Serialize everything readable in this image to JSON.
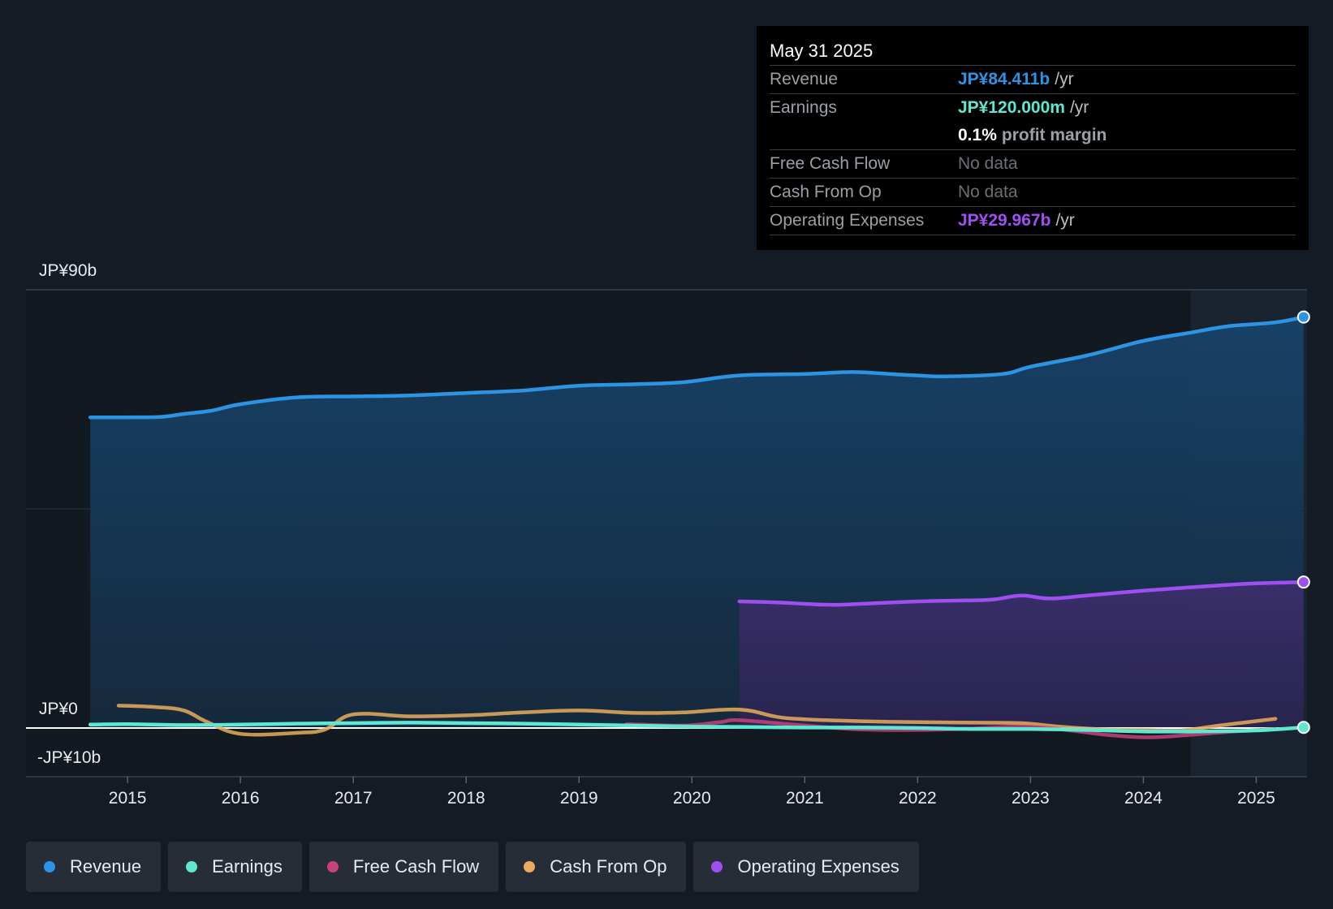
{
  "tooltip": {
    "date": "May 31 2025",
    "revenue": {
      "label": "Revenue",
      "value": "JP¥84.411b",
      "unit": "/yr"
    },
    "earnings": {
      "label": "Earnings",
      "value": "JP¥120.000m",
      "unit": "/yr"
    },
    "profit_margin": {
      "value": "0.1%",
      "label": "profit margin"
    },
    "free_cash_flow": {
      "label": "Free Cash Flow",
      "value": "No data"
    },
    "cash_from_op": {
      "label": "Cash From Op",
      "value": "No data"
    },
    "operating_expenses": {
      "label": "Operating Expenses",
      "value": "JP¥29.967b",
      "unit": "/yr"
    }
  },
  "legend": [
    {
      "label": "Revenue",
      "color": "#2d94e3"
    },
    {
      "label": "Earnings",
      "color": "#5ee8d2"
    },
    {
      "label": "Free Cash Flow",
      "color": "#c8427a"
    },
    {
      "label": "Cash From Op",
      "color": "#e8ad5c"
    },
    {
      "label": "Operating Expenses",
      "color": "#9f4ff0"
    }
  ],
  "chart_data": {
    "type": "area",
    "title": "",
    "y_axis_labels": [
      "JP¥90b",
      "JP¥0",
      "-JP¥10b"
    ],
    "ylim": [
      -10,
      90
    ],
    "xlim": [
      2014.1,
      2025.45
    ],
    "x_ticks": [
      2015,
      2016,
      2017,
      2018,
      2019,
      2020,
      2021,
      2022,
      2023,
      2024,
      2025
    ],
    "x_tick_labels": [
      "2015",
      "2016",
      "2017",
      "2018",
      "2019",
      "2020",
      "2021",
      "2022",
      "2023",
      "2024",
      "2025"
    ],
    "forecast_region_start": 2024.42,
    "series": [
      {
        "name": "Revenue",
        "color": "#2d94e3",
        "filled": true,
        "points": [
          [
            2014.67,
            63.8
          ],
          [
            2015.0,
            63.8
          ],
          [
            2015.3,
            63.9
          ],
          [
            2015.5,
            64.5
          ],
          [
            2015.75,
            65.2
          ],
          [
            2016.0,
            66.5
          ],
          [
            2016.5,
            67.9
          ],
          [
            2017.0,
            68.1
          ],
          [
            2017.5,
            68.3
          ],
          [
            2018.0,
            68.8
          ],
          [
            2018.5,
            69.3
          ],
          [
            2019.0,
            70.3
          ],
          [
            2019.5,
            70.6
          ],
          [
            2019.92,
            71.0
          ],
          [
            2020.25,
            72.0
          ],
          [
            2020.5,
            72.5
          ],
          [
            2021.0,
            72.7
          ],
          [
            2021.42,
            73.1
          ],
          [
            2021.75,
            72.7
          ],
          [
            2022.0,
            72.4
          ],
          [
            2022.25,
            72.2
          ],
          [
            2022.75,
            72.7
          ],
          [
            2023.0,
            74.2
          ],
          [
            2023.5,
            76.5
          ],
          [
            2024.0,
            79.5
          ],
          [
            2024.42,
            81.2
          ],
          [
            2024.75,
            82.5
          ],
          [
            2025.17,
            83.3
          ],
          [
            2025.42,
            84.4
          ]
        ]
      },
      {
        "name": "Operating Expenses",
        "color": "#9f4ff0",
        "filled": true,
        "points": [
          [
            2020.42,
            26.0
          ],
          [
            2020.75,
            25.8
          ],
          [
            2021.0,
            25.5
          ],
          [
            2021.25,
            25.3
          ],
          [
            2021.5,
            25.5
          ],
          [
            2022.0,
            26.0
          ],
          [
            2022.42,
            26.2
          ],
          [
            2022.67,
            26.4
          ],
          [
            2022.92,
            27.2
          ],
          [
            2023.17,
            26.6
          ],
          [
            2023.5,
            27.2
          ],
          [
            2024.0,
            28.2
          ],
          [
            2024.42,
            28.9
          ],
          [
            2024.75,
            29.4
          ],
          [
            2025.0,
            29.7
          ],
          [
            2025.42,
            29.97
          ]
        ]
      },
      {
        "name": "Cash From Op",
        "color": "#e8ad5c",
        "filled": false,
        "points": [
          [
            2014.92,
            4.6
          ],
          [
            2015.25,
            4.3
          ],
          [
            2015.5,
            3.6
          ],
          [
            2015.7,
            1.3
          ],
          [
            2016.0,
            -1.2
          ],
          [
            2016.5,
            -1.0
          ],
          [
            2016.75,
            -0.3
          ],
          [
            2017.0,
            2.8
          ],
          [
            2017.5,
            2.4
          ],
          [
            2018.0,
            2.6
          ],
          [
            2018.5,
            3.2
          ],
          [
            2019.0,
            3.6
          ],
          [
            2019.5,
            3.1
          ],
          [
            2019.92,
            3.2
          ],
          [
            2020.42,
            3.8
          ],
          [
            2020.75,
            2.3
          ],
          [
            2021.0,
            1.8
          ],
          [
            2021.5,
            1.4
          ],
          [
            2022.0,
            1.2
          ],
          [
            2022.5,
            1.1
          ],
          [
            2022.92,
            1.0
          ],
          [
            2023.25,
            0.3
          ],
          [
            2023.67,
            -0.3
          ],
          [
            2024.0,
            -0.4
          ],
          [
            2024.33,
            -0.5
          ],
          [
            2024.67,
            0.5
          ],
          [
            2025.17,
            1.9
          ]
        ]
      },
      {
        "name": "Free Cash Flow",
        "color": "#c8427a",
        "filled": false,
        "points": [
          [
            2019.42,
            0.8
          ],
          [
            2019.92,
            0.5
          ],
          [
            2020.25,
            1.2
          ],
          [
            2020.42,
            1.6
          ],
          [
            2021.0,
            0.5
          ],
          [
            2021.5,
            -0.3
          ],
          [
            2022.0,
            -0.4
          ],
          [
            2022.5,
            -0.1
          ],
          [
            2022.92,
            0.3
          ],
          [
            2023.25,
            -0.2
          ],
          [
            2023.67,
            -1.4
          ],
          [
            2024.0,
            -1.9
          ],
          [
            2024.25,
            -1.7
          ],
          [
            2024.75,
            -0.8
          ],
          [
            2025.17,
            -0.2
          ]
        ]
      },
      {
        "name": "Earnings",
        "color": "#5ee8d2",
        "filled": false,
        "points": [
          [
            2014.67,
            0.7
          ],
          [
            2015.0,
            0.8
          ],
          [
            2015.5,
            0.6
          ],
          [
            2016.0,
            0.7
          ],
          [
            2016.5,
            0.9
          ],
          [
            2017.0,
            1.0
          ],
          [
            2017.5,
            1.1
          ],
          [
            2018.0,
            1.0
          ],
          [
            2018.5,
            0.9
          ],
          [
            2019.0,
            0.7
          ],
          [
            2019.5,
            0.5
          ],
          [
            2020.0,
            0.3
          ],
          [
            2020.5,
            0.2
          ],
          [
            2021.0,
            0.1
          ],
          [
            2021.5,
            0.1
          ],
          [
            2022.0,
            0.0
          ],
          [
            2022.5,
            -0.2
          ],
          [
            2023.0,
            -0.2
          ],
          [
            2023.5,
            -0.4
          ],
          [
            2024.0,
            -0.7
          ],
          [
            2024.5,
            -0.7
          ],
          [
            2025.0,
            -0.5
          ],
          [
            2025.42,
            0.12
          ]
        ]
      }
    ]
  }
}
